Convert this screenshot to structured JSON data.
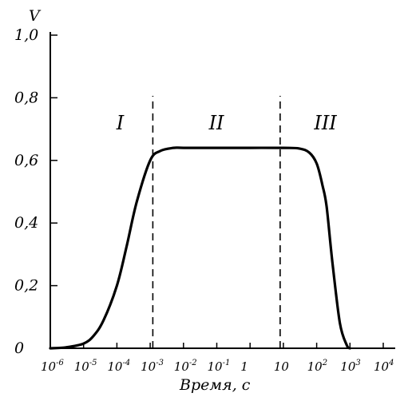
{
  "chart_data": {
    "type": "line",
    "title": "",
    "xlabel": "Время, с",
    "ylabel": "V",
    "xscale": "log",
    "xlim": [
      1e-06,
      10000.0
    ],
    "ylim": [
      0,
      1.0
    ],
    "y_ticks": [
      "0",
      "0,2",
      "0,4",
      "0,6",
      "0,8",
      "1,0"
    ],
    "x_ticks": [
      {
        "base": "10",
        "exp": "-6"
      },
      {
        "base": "10",
        "exp": "-5"
      },
      {
        "base": "10",
        "exp": "-4"
      },
      {
        "base": "10",
        "exp": "-3"
      },
      {
        "base": "10",
        "exp": "-2"
      },
      {
        "base": "10",
        "exp": "-1"
      },
      {
        "base": "1",
        "exp": ""
      },
      {
        "base": "10",
        "exp": ""
      },
      {
        "base": "10",
        "exp": "2"
      },
      {
        "base": "10",
        "exp": "3"
      },
      {
        "base": "10",
        "exp": "4"
      }
    ],
    "grid": false,
    "series": [
      {
        "x": [
          1e-06,
          3e-06,
          1e-05,
          2e-05,
          4e-05,
          0.0001,
          0.0002,
          0.0004,
          0.001,
          0.002,
          0.005,
          0.01,
          0.1,
          1,
          10,
          30,
          60,
          100,
          150,
          200,
          300,
          500,
          800,
          1000
        ],
        "y": [
          0.0,
          0.003,
          0.015,
          0.04,
          0.09,
          0.2,
          0.33,
          0.47,
          0.6,
          0.63,
          0.64,
          0.64,
          0.64,
          0.64,
          0.64,
          0.638,
          0.625,
          0.59,
          0.52,
          0.45,
          0.27,
          0.08,
          0.01,
          0.0
        ]
      }
    ],
    "dividers": [
      0.0012,
      8
    ],
    "regions": [
      {
        "label": "I",
        "x": 0.00015
      },
      {
        "label": "II",
        "x": 0.09
      },
      {
        "label": "III",
        "x": 130
      }
    ]
  }
}
